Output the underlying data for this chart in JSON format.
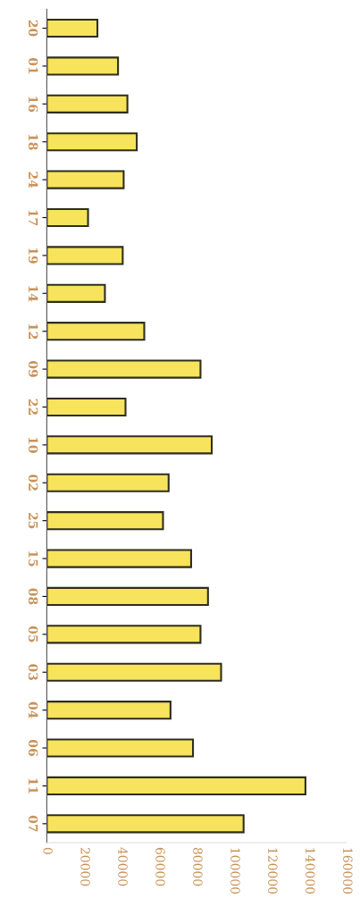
{
  "chart_data": {
    "type": "bar",
    "orientation": "horizontal",
    "categories": [
      "20",
      "01",
      "16",
      "18",
      "24",
      "17",
      "19",
      "14",
      "12",
      "09",
      "22",
      "10",
      "02",
      "25",
      "15",
      "08",
      "05",
      "03",
      "04",
      "06",
      "11",
      "07"
    ],
    "values": [
      27000,
      38000,
      43000,
      48000,
      41000,
      22000,
      40500,
      31000,
      52000,
      82000,
      42000,
      88000,
      65000,
      62000,
      77000,
      86000,
      82000,
      93000,
      66000,
      78000,
      138000,
      105000
    ],
    "color": "#f7e35c",
    "xlim": [
      0,
      160000
    ],
    "xticks": [
      0,
      20000,
      40000,
      60000,
      80000,
      100000,
      120000,
      140000,
      160000
    ],
    "grid": false
  }
}
